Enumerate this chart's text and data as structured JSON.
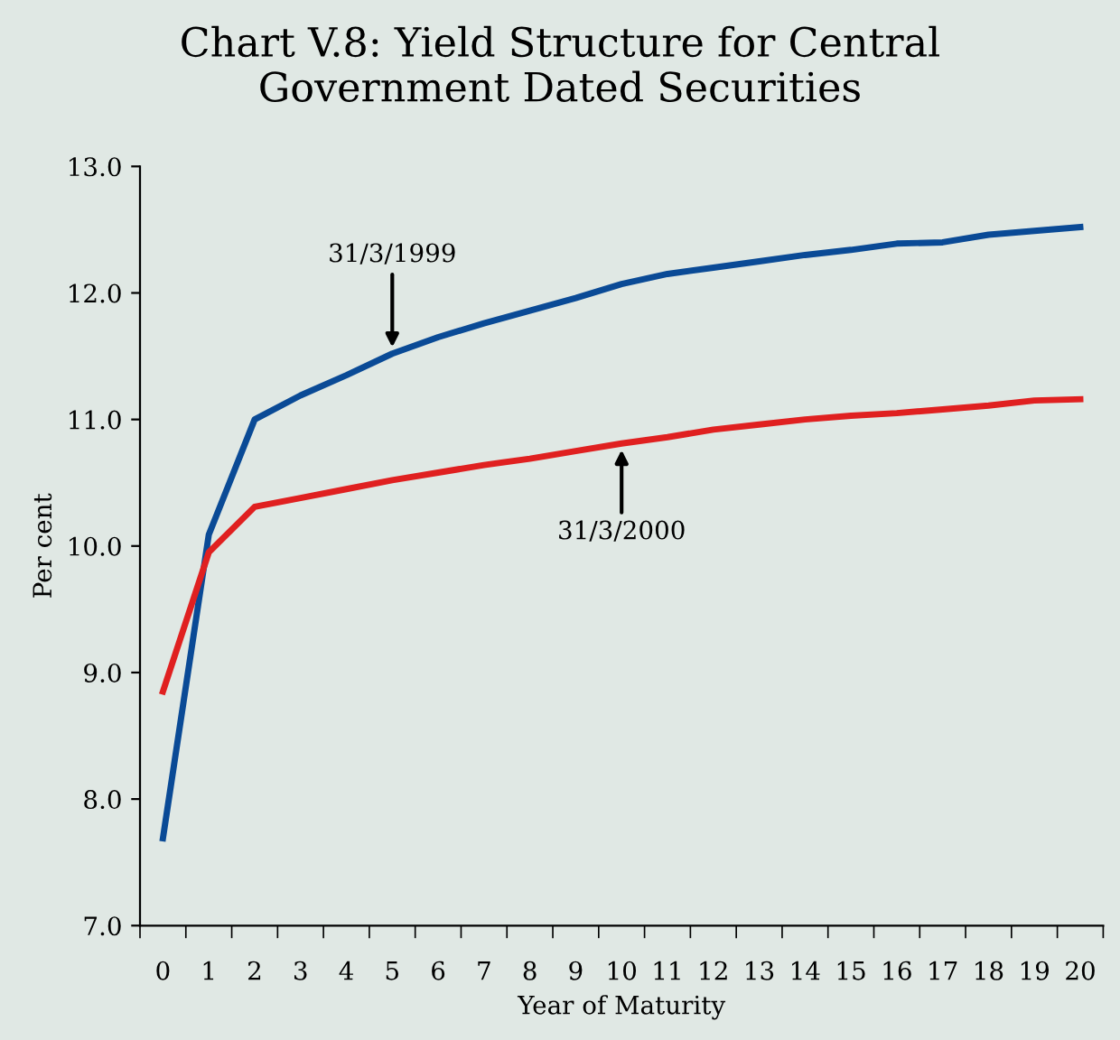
{
  "chart_data": {
    "type": "line",
    "title": "Chart V.8: Yield Structure for Central\nGovernment Dated Securities",
    "xlabel": "Year of Maturity",
    "ylabel": "Per cent",
    "categories": [
      "0",
      "1",
      "2",
      "3",
      "4",
      "5",
      "6",
      "7",
      "8",
      "9",
      "10",
      "11",
      "12",
      "13",
      "14",
      "15",
      "16",
      "17",
      "18",
      "19",
      "20"
    ],
    "series": [
      {
        "name": "31/3/1999",
        "color": "#0a4a96",
        "values": [
          7.69,
          10.09,
          11.0,
          11.19,
          11.35,
          11.52,
          11.65,
          11.76,
          11.86,
          11.96,
          12.07,
          12.15,
          12.2,
          12.25,
          12.3,
          12.34,
          12.39,
          12.4,
          12.46,
          12.49,
          12.52
        ]
      },
      {
        "name": "31/3/2000",
        "color": "#e02020",
        "values": [
          8.85,
          9.95,
          10.31,
          10.38,
          10.45,
          10.52,
          10.58,
          10.64,
          10.69,
          10.75,
          10.81,
          10.86,
          10.92,
          10.96,
          11.0,
          11.03,
          11.05,
          11.08,
          11.11,
          11.15,
          11.16
        ]
      }
    ],
    "ylim": [
      7.0,
      13.0
    ],
    "yticks": [
      {
        "value": 7,
        "label": "7.0"
      },
      {
        "value": 8,
        "label": "8.0"
      },
      {
        "value": 9,
        "label": "9.0"
      },
      {
        "value": 10,
        "label": "10.0"
      },
      {
        "value": 11,
        "label": "11.0"
      },
      {
        "value": 12,
        "label": "12.0"
      },
      {
        "value": 13,
        "label": "13.0"
      }
    ],
    "grid": false,
    "legend": false,
    "marker": "none",
    "line_style": "solid"
  }
}
